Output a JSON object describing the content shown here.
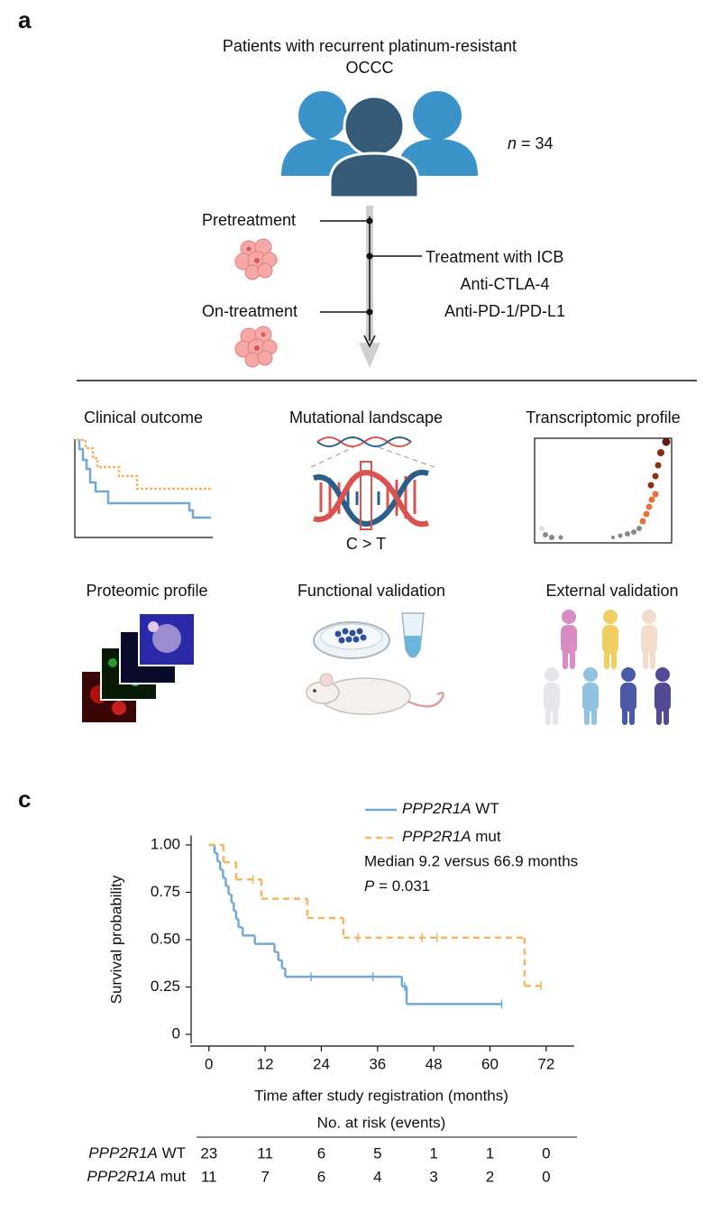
{
  "panel_a": {
    "label": "a",
    "title": [
      "Patients with recurrent platinum-resistant",
      "OCCC"
    ],
    "n": "n = 34",
    "timeline": {
      "pre": "Pretreatment",
      "on": "On-treatment",
      "treatment": [
        "Treatment with ICB",
        "Anti-CTLA-4",
        "Anti-PD-1/PD-L1"
      ]
    },
    "modules": [
      "Clinical outcome",
      "Mutational landscape",
      "Transcriptomic profile",
      "Proteomic profile",
      "Functional validation",
      "External validation"
    ],
    "mutation": "C > T"
  },
  "panel_c": {
    "label": "c"
  },
  "chart_data": {
    "type": "kaplan-meier",
    "xlabel": "Time after study registration (months)",
    "ylabel": "Survival probability",
    "xlim": [
      -4,
      78
    ],
    "xticks": [
      0,
      12,
      24,
      36,
      48,
      60,
      72
    ],
    "ylim": [
      -0.05,
      1.05
    ],
    "yticks": [
      {
        "value": 1,
        "label": "1.00"
      },
      0.75,
      {
        "value": 0.5,
        "label": "0.50"
      },
      0.25,
      0
    ],
    "annotations": [
      "Median 9.2 versus 66.9 months",
      "P = 0.031"
    ],
    "series": [
      {
        "name": "PPP2R1A WT",
        "color": "#74a9d4",
        "line_style": "solid",
        "x": [
          0,
          1.2,
          1.8,
          2.4,
          3.0,
          3.6,
          4.2,
          4.8,
          5.3,
          5.8,
          6.3,
          7.2,
          9.8,
          14.0,
          14.8,
          15.6,
          16.3,
          41.2,
          42.2
        ],
        "values": [
          1,
          0.957,
          0.913,
          0.87,
          0.826,
          0.783,
          0.739,
          0.696,
          0.652,
          0.609,
          0.565,
          0.522,
          0.478,
          0.435,
          0.391,
          0.348,
          0.304,
          0.253,
          0.16
        ],
        "censored_x": [
          21.8,
          35,
          41.8,
          62.5
        ],
        "censored_values": [
          0.304,
          0.304,
          0.253,
          0.16
        ]
      },
      {
        "name": "PPP2R1A mut",
        "color": "#f5b562",
        "line_style": "dashed",
        "x": [
          0,
          3.1,
          5.8,
          11.2,
          21,
          28.7,
          67.4
        ],
        "values": [
          1,
          0.909,
          0.818,
          0.716,
          0.614,
          0.511,
          0.256
        ],
        "censored_x": [
          9.4,
          31.8,
          45.5,
          48.7,
          70.9
        ],
        "censored_values": [
          0.818,
          0.511,
          0.511,
          0.511,
          0.256
        ]
      }
    ],
    "risk_table": {
      "title": "No. at risk (events)",
      "rows": [
        [
          23,
          11,
          6,
          5,
          1,
          1,
          0
        ],
        [
          11,
          7,
          6,
          4,
          3,
          2,
          0
        ]
      ]
    }
  }
}
